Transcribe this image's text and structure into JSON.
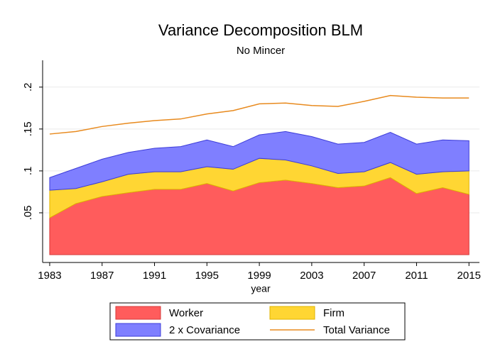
{
  "chart_data": {
    "type": "area",
    "title": "Variance Decomposition BLM",
    "subtitle": "No Mincer",
    "x_label": "year",
    "x": [
      1983,
      1985,
      1987,
      1989,
      1991,
      1993,
      1995,
      1997,
      1999,
      2001,
      2003,
      2005,
      2007,
      2009,
      2011,
      2013,
      2015
    ],
    "series": [
      {
        "name": "Worker",
        "type": "area",
        "color": "#ff5c5c",
        "edge": "#d63a3a",
        "values": [
          0.044,
          0.061,
          0.0695,
          0.074,
          0.078,
          0.078,
          0.085,
          0.076,
          0.086,
          0.089,
          0.085,
          0.08,
          0.082,
          0.092,
          0.073,
          0.08,
          0.072
        ]
      },
      {
        "name": "Firm",
        "type": "area",
        "color": "#ffd633",
        "edge": "#e0b400",
        "values": [
          0.033,
          0.018,
          0.0175,
          0.022,
          0.021,
          0.021,
          0.02,
          0.026,
          0.029,
          0.024,
          0.021,
          0.017,
          0.017,
          0.018,
          0.023,
          0.019,
          0.028
        ]
      },
      {
        "name": "2 x Covariance",
        "type": "area",
        "color": "#7f7fff",
        "edge": "#3c3cd8",
        "values": [
          0.015,
          0.024,
          0.027,
          0.026,
          0.028,
          0.03,
          0.032,
          0.027,
          0.028,
          0.034,
          0.035,
          0.035,
          0.035,
          0.036,
          0.036,
          0.038,
          0.036
        ]
      },
      {
        "name": "Total Variance",
        "type": "line",
        "color": "#e88a1e",
        "values": [
          0.144,
          0.147,
          0.153,
          0.157,
          0.16,
          0.162,
          0.168,
          0.172,
          0.18,
          0.181,
          0.178,
          0.177,
          0.183,
          0.19,
          0.188,
          0.187,
          0.187
        ]
      }
    ],
    "xlim": [
      1982.46,
      2015.8
    ],
    "xticks": [
      1983,
      1987,
      1991,
      1995,
      1999,
      2003,
      2007,
      2011,
      2015
    ],
    "ylim": [
      -0.0093,
      0.232
    ],
    "yticks": [
      {
        "value": 0.05,
        "label": ".05"
      },
      {
        "value": 0.1,
        "label": ".1"
      },
      {
        "value": 0.15,
        "label": ".15"
      },
      {
        "value": 0.2,
        "label": ".2"
      }
    ],
    "grid": true
  }
}
